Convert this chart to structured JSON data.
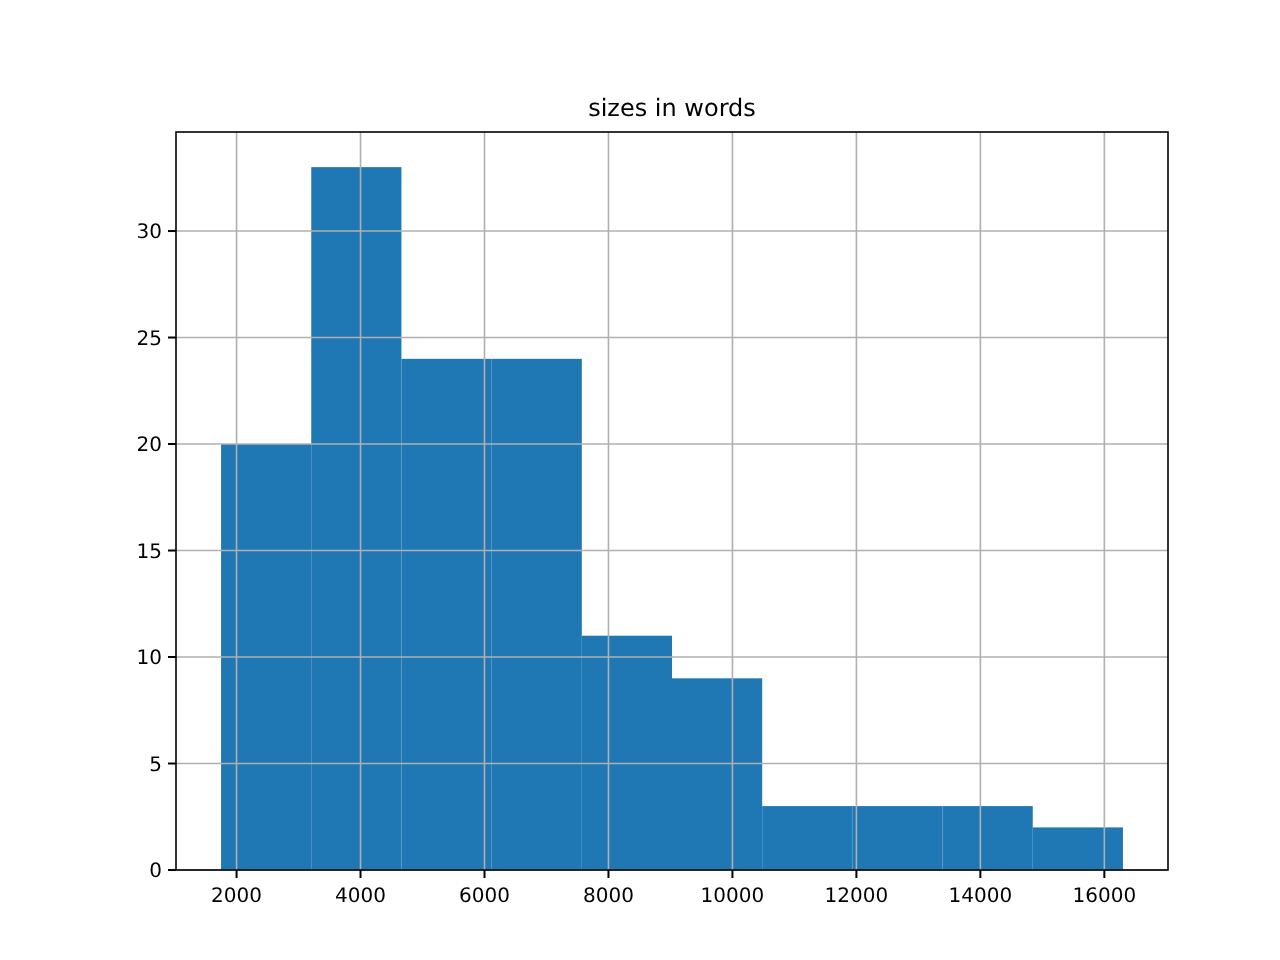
{
  "chart_data": {
    "type": "histogram",
    "title": "sizes in words",
    "bins": [
      1750,
      3205,
      4660,
      6115,
      7570,
      9025,
      10480,
      11935,
      13390,
      14845,
      16300
    ],
    "values": [
      20,
      33,
      24,
      24,
      11,
      9,
      3,
      3,
      3,
      2
    ],
    "color": "#1f77b4",
    "xlim": [
      1023,
      17027
    ],
    "xticks": [
      2000,
      4000,
      6000,
      8000,
      10000,
      12000,
      14000,
      16000
    ],
    "ylim": [
      0,
      34.65
    ],
    "yticks": [
      0,
      5,
      10,
      15,
      20,
      25,
      30
    ],
    "grid": true
  }
}
